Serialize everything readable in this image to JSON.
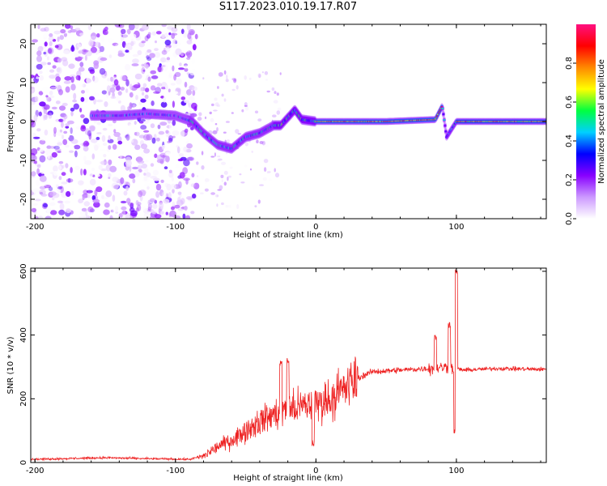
{
  "title": "S117.2023.010.19.17.R07",
  "chart_data": [
    {
      "type": "heatmap",
      "xlabel": "Height of straight line (km)",
      "ylabel": "Frequency (Hz)",
      "xlim": [
        -203,
        164
      ],
      "ylim": [
        -25,
        25
      ],
      "xticks": [
        -200,
        -100,
        0,
        100
      ],
      "yticks": [
        -20,
        -10,
        0,
        10,
        20
      ],
      "xtick_labels": [
        "-200",
        "-100",
        "0",
        "100"
      ],
      "ytick_labels": [
        "-20",
        "-10",
        "0",
        "10",
        "20"
      ],
      "colorbar": {
        "label": "Normalized spectral amplitude",
        "range": [
          0,
          1
        ],
        "ticks": [
          "0.0",
          "0.2",
          "0.4",
          "0.6",
          "0.8"
        ],
        "tick_values": [
          0,
          0.2,
          0.4,
          0.6,
          0.8
        ],
        "colors": [
          "#ffffff",
          "#cc99ff",
          "#8800ff",
          "#0000ff",
          "#00d0ff",
          "#00ff40",
          "#ffff00",
          "#ff8800",
          "#ff0000",
          "#ff1080"
        ]
      },
      "noise_region_x": [
        -203,
        -85
      ],
      "center_line": [
        {
          "x": -160,
          "f": 1.5
        },
        {
          "x": -140,
          "f": 1.5
        },
        {
          "x": -120,
          "f": 2
        },
        {
          "x": -100,
          "f": 1.5
        },
        {
          "x": -88,
          "f": 0
        },
        {
          "x": -80,
          "f": -3
        },
        {
          "x": -70,
          "f": -6
        },
        {
          "x": -60,
          "f": -7
        },
        {
          "x": -50,
          "f": -4
        },
        {
          "x": -40,
          "f": -3
        },
        {
          "x": -30,
          "f": -1
        },
        {
          "x": -25,
          "f": -1
        },
        {
          "x": -15,
          "f": 3
        },
        {
          "x": -10,
          "f": 0.5
        },
        {
          "x": 0,
          "f": 0
        },
        {
          "x": 50,
          "f": 0
        },
        {
          "x": 85,
          "f": 0.5
        },
        {
          "x": 90,
          "f": 4
        },
        {
          "x": 93,
          "f": -4
        },
        {
          "x": 100,
          "f": 0
        },
        {
          "x": 164,
          "f": 0
        }
      ]
    },
    {
      "type": "line",
      "xlabel": "Height of straight line (km)",
      "ylabel": "SNR (10 * v/v)",
      "xlim": [
        -203,
        164
      ],
      "ylim": [
        0,
        610
      ],
      "xticks": [
        -200,
        -100,
        0,
        100
      ],
      "yticks": [
        0,
        200,
        400,
        600
      ],
      "xtick_labels": [
        "-200",
        "-100",
        "0",
        "100"
      ],
      "ytick_labels": [
        "0",
        "200",
        "400",
        "600"
      ],
      "series": [
        {
          "color": "#ee2222",
          "baseline": [
            {
              "x": -203,
              "y": 10
            },
            {
              "x": -150,
              "y": 15
            },
            {
              "x": -120,
              "y": 12
            },
            {
              "x": -90,
              "y": 10
            },
            {
              "x": -80,
              "y": 20
            },
            {
              "x": -70,
              "y": 50
            },
            {
              "x": -60,
              "y": 70
            },
            {
              "x": -50,
              "y": 100
            },
            {
              "x": -40,
              "y": 130
            },
            {
              "x": -30,
              "y": 150
            },
            {
              "x": -20,
              "y": 165
            },
            {
              "x": -10,
              "y": 175
            },
            {
              "x": 0,
              "y": 185
            },
            {
              "x": 10,
              "y": 200
            },
            {
              "x": 20,
              "y": 230
            },
            {
              "x": 30,
              "y": 265
            },
            {
              "x": 40,
              "y": 285
            },
            {
              "x": 60,
              "y": 290
            },
            {
              "x": 80,
              "y": 295
            },
            {
              "x": 95,
              "y": 300
            },
            {
              "x": 105,
              "y": 290
            },
            {
              "x": 130,
              "y": 295
            },
            {
              "x": 164,
              "y": 292
            }
          ],
          "spikes": [
            {
              "x": -25,
              "y": 320
            },
            {
              "x": -20,
              "y": 330
            },
            {
              "x": -2,
              "y": 70
            },
            {
              "x": 85,
              "y": 400
            },
            {
              "x": 95,
              "y": 440
            },
            {
              "x": 99,
              "y": 110
            },
            {
              "x": 100,
              "y": 610
            }
          ]
        }
      ]
    }
  ]
}
